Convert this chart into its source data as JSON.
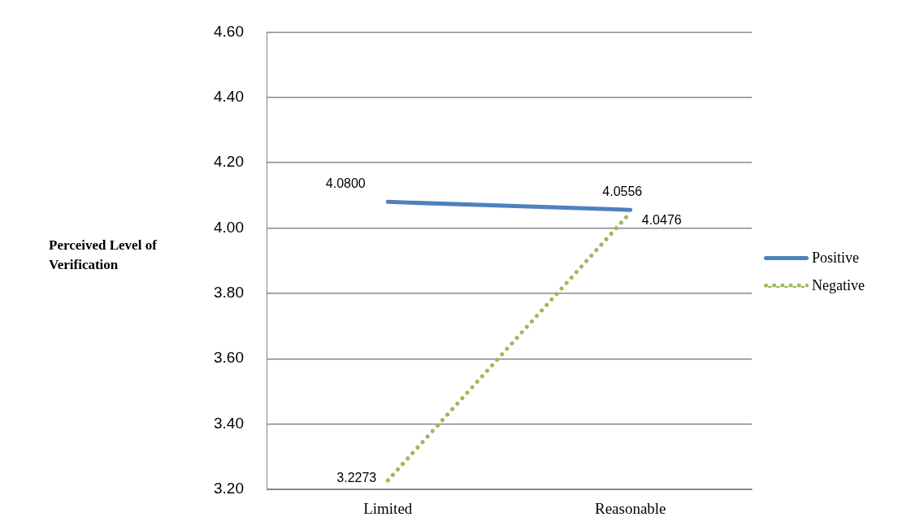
{
  "chart_data": {
    "type": "line",
    "ylabel": "Perceived Level of Verification",
    "categories": [
      "Limited",
      "Reasonable"
    ],
    "series": [
      {
        "name": "Positive",
        "color": "#4f81bd",
        "values": [
          4.08,
          4.0556
        ],
        "value_labels": [
          "4.0800",
          "4.0556"
        ],
        "line_style": "solid"
      },
      {
        "name": "Negative",
        "color": "#9bbb59",
        "values": [
          3.2273,
          4.0476
        ],
        "value_labels": [
          "3.2273",
          "4.0476"
        ],
        "line_style": "dotted"
      }
    ],
    "ylim": [
      3.2,
      4.6
    ],
    "yticks": [
      {
        "value": 3.2,
        "label": "3.20"
      },
      {
        "value": 3.4,
        "label": "3.40"
      },
      {
        "value": 3.6,
        "label": "3.60"
      },
      {
        "value": 3.8,
        "label": "3.80"
      },
      {
        "value": 4.0,
        "label": "4.00"
      },
      {
        "value": 4.2,
        "label": "4.20"
      },
      {
        "value": 4.4,
        "label": "4.40"
      },
      {
        "value": 4.6,
        "label": "4.60"
      }
    ],
    "grid": "y",
    "legend": "right",
    "marker": "none"
  }
}
